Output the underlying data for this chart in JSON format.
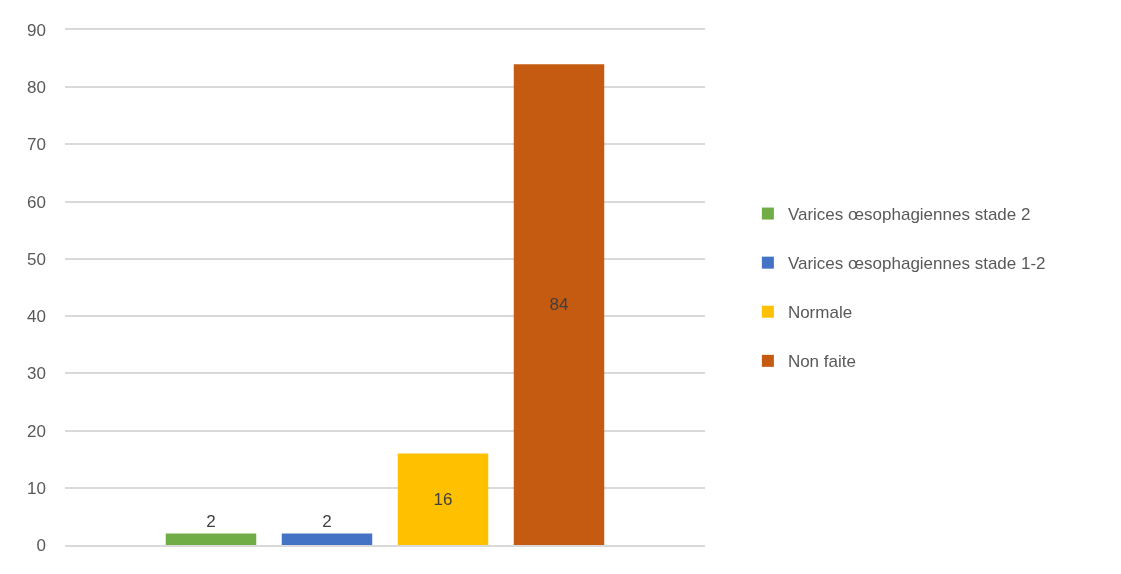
{
  "chart_data": {
    "type": "bar",
    "categories": [
      null
    ],
    "series": [
      {
        "name": "Varices œsophagiennes stade 2",
        "color": "#70ad47",
        "values": [
          2
        ]
      },
      {
        "name": "Varices œsophagiennes stade 1-2",
        "color": "#4472c4",
        "values": [
          2
        ]
      },
      {
        "name": "Normale",
        "color": "#ffc000",
        "values": [
          16
        ]
      },
      {
        "name": "Non faite",
        "color": "#c55a11",
        "values": [
          84
        ]
      }
    ],
    "ylim": [
      0,
      90
    ],
    "yticks": [
      0,
      10,
      20,
      30,
      40,
      50,
      60,
      70,
      80,
      90
    ],
    "grid": "y",
    "legend": "right",
    "tick_labels": "y",
    "data_labels": true
  }
}
